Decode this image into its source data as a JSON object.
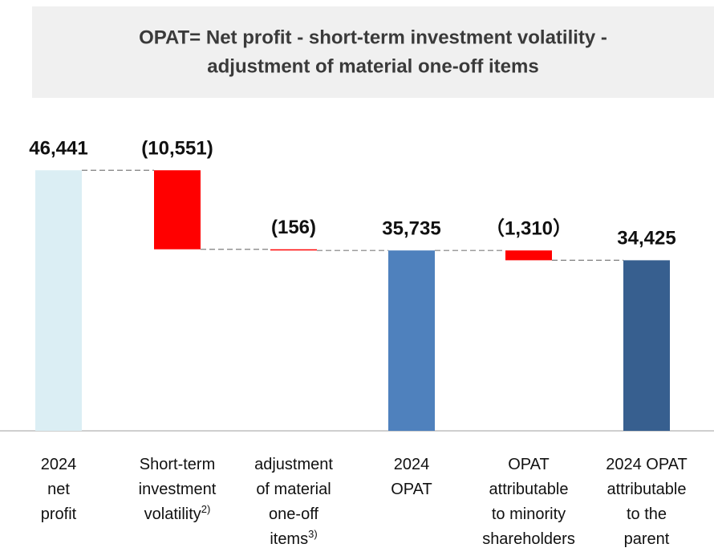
{
  "chart_data": {
    "type": "waterfall",
    "title": [
      "OPAT= Net profit - short-term investment volatility -",
      "adjustment of material one-off items"
    ],
    "categories": [
      [
        "2024",
        "net",
        "profit"
      ],
      [
        "Short-term",
        "investment",
        "volatility"
      ],
      [
        "adjustment",
        "of material",
        "one-off",
        "items"
      ],
      [
        "2024",
        "OPAT"
      ],
      [
        "OPAT",
        "attributable",
        "to minority",
        "shareholders"
      ],
      [
        "2024 OPAT",
        "attributable",
        "to the",
        "parent"
      ]
    ],
    "footnotes": {
      "1": "2)",
      "2": "3)"
    },
    "measure": [
      "total",
      "relative",
      "relative",
      "total",
      "relative",
      "total"
    ],
    "values": [
      46441,
      -10551,
      -156,
      35735,
      -1310,
      34425
    ],
    "value_labels": [
      "46,441",
      "(10,551)",
      "(156)",
      "35,735",
      "（1,310）",
      "34,425"
    ],
    "colors": [
      "#dbeef4",
      "#ff0000",
      "#ff0000",
      "#4f81bd",
      "#ff0000",
      "#375f8f"
    ],
    "ylim": [
      11650,
      50000
    ]
  }
}
